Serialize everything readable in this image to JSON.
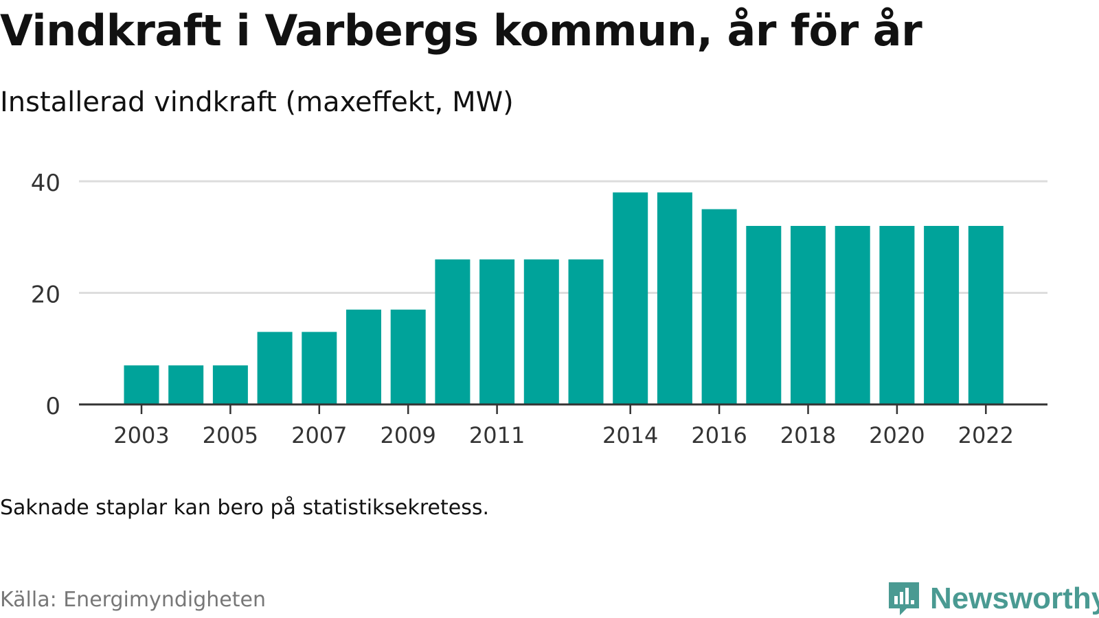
{
  "header": {
    "title": "Vindkraft i Varbergs kommun, år för år",
    "subtitle": "Installerad vindkraft (maxeffekt, MW)"
  },
  "footer": {
    "note": "Saknade staplar kan bero på statistiksekretess.",
    "source": "Källa: Energimyndigheten",
    "brand": "Newsworthy"
  },
  "colors": {
    "bar": "#00a39a",
    "grid": "#dddddd",
    "axis": "#333333",
    "brand": "#4a9a92"
  },
  "chart_data": {
    "type": "bar",
    "categories": [
      "2003",
      "2004",
      "2005",
      "2006",
      "2007",
      "2008",
      "2009",
      "2010",
      "2011",
      "2012",
      "2013",
      "2014",
      "2015",
      "2016",
      "2017",
      "2018",
      "2019",
      "2020",
      "2021",
      "2022"
    ],
    "x_tick_labels": [
      "2003",
      "2005",
      "2007",
      "2009",
      "2011",
      "2014",
      "2016",
      "2018",
      "2020",
      "2022"
    ],
    "values": [
      7,
      7,
      7,
      13,
      13,
      17,
      17,
      26,
      26,
      26,
      26,
      38,
      38,
      35,
      32,
      32,
      32,
      32,
      32,
      32
    ],
    "y_ticks": [
      0,
      20,
      40
    ],
    "ylim": [
      0,
      40
    ],
    "grid": true,
    "legend": "none"
  }
}
